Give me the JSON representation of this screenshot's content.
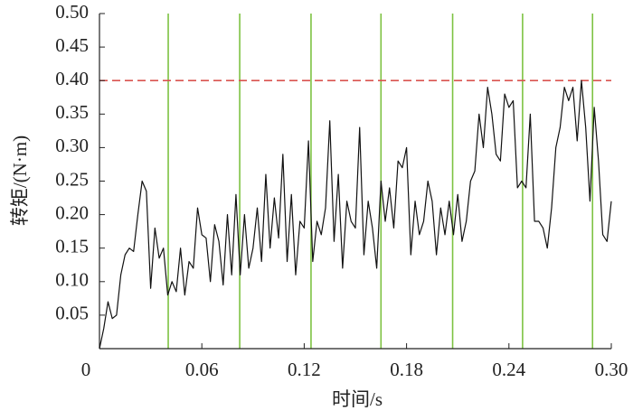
{
  "chart_data": {
    "type": "line",
    "xlabel": "时间/s",
    "ylabel": "转矩/(N·m)",
    "xlim": [
      0,
      0.3
    ],
    "ylim": [
      0,
      0.5
    ],
    "xticks": [
      0,
      0.06,
      0.12,
      0.18,
      0.24,
      {
        "value": 0.3,
        "label": "0.30"
      }
    ],
    "yticks": [
      0.05,
      {
        "value": 0.1,
        "label": "0.10"
      },
      0.15,
      {
        "value": 0.2,
        "label": "0.20"
      },
      0.25,
      {
        "value": 0.3,
        "label": "0.30"
      },
      0.35,
      {
        "value": 0.4,
        "label": "0.40"
      },
      0.45,
      {
        "value": 0.5,
        "label": "0.50"
      }
    ],
    "hline": 0.4,
    "hline_color": "#d9534f",
    "vlines": [
      0.0403,
      0.0822,
      0.124,
      0.165,
      0.207,
      0.248,
      0.289
    ],
    "vline_color": "#7dc242",
    "series": [
      {
        "color": "#111111",
        "x": [
          0,
          0.0025,
          0.005,
          0.0075,
          0.01,
          0.0125,
          0.015,
          0.0175,
          0.02,
          0.0225,
          0.025,
          0.0275,
          0.03,
          0.0325,
          0.035,
          0.0375,
          0.04,
          0.0425,
          0.045,
          0.0475,
          0.05,
          0.0525,
          0.055,
          0.0575,
          0.06,
          0.0625,
          0.065,
          0.0675,
          0.07,
          0.0725,
          0.075,
          0.0775,
          0.08,
          0.0825,
          0.085,
          0.0875,
          0.09,
          0.0925,
          0.095,
          0.0975,
          0.1,
          0.1025,
          0.105,
          0.1075,
          0.11,
          0.1125,
          0.115,
          0.1175,
          0.12,
          0.1225,
          0.125,
          0.1275,
          0.13,
          0.1325,
          0.135,
          0.1375,
          0.14,
          0.1425,
          0.145,
          0.1475,
          0.15,
          0.1525,
          0.155,
          0.1575,
          0.16,
          0.1625,
          0.165,
          0.1675,
          0.17,
          0.1725,
          0.175,
          0.1775,
          0.18,
          0.1825,
          0.185,
          0.1875,
          0.19,
          0.1925,
          0.195,
          0.1975,
          0.2,
          0.2025,
          0.205,
          0.2075,
          0.21,
          0.2125,
          0.215,
          0.2175,
          0.22,
          0.2225,
          0.225,
          0.2275,
          0.23,
          0.2325,
          0.235,
          0.2375,
          0.24,
          0.2425,
          0.245,
          0.2475,
          0.25,
          0.2525,
          0.255,
          0.2575,
          0.26,
          0.2625,
          0.265,
          0.2675,
          0.27,
          0.2725,
          0.275,
          0.2775,
          0.28,
          0.2825,
          0.285,
          0.2875,
          0.29,
          0.2925,
          0.295,
          0.2975,
          0.3
        ],
        "values": [
          0,
          0.03,
          0.07,
          0.045,
          0.05,
          0.11,
          0.14,
          0.15,
          0.145,
          0.2,
          0.25,
          0.235,
          0.09,
          0.18,
          0.135,
          0.15,
          0.08,
          0.1,
          0.085,
          0.15,
          0.08,
          0.13,
          0.12,
          0.21,
          0.17,
          0.165,
          0.1,
          0.185,
          0.16,
          0.095,
          0.2,
          0.11,
          0.23,
          0.11,
          0.2,
          0.12,
          0.15,
          0.21,
          0.13,
          0.26,
          0.15,
          0.225,
          0.165,
          0.29,
          0.13,
          0.23,
          0.11,
          0.19,
          0.18,
          0.31,
          0.13,
          0.19,
          0.17,
          0.21,
          0.34,
          0.16,
          0.26,
          0.12,
          0.22,
          0.19,
          0.18,
          0.33,
          0.14,
          0.22,
          0.18,
          0.12,
          0.25,
          0.19,
          0.24,
          0.18,
          0.28,
          0.27,
          0.3,
          0.14,
          0.22,
          0.17,
          0.19,
          0.25,
          0.22,
          0.14,
          0.21,
          0.17,
          0.22,
          0.17,
          0.23,
          0.16,
          0.19,
          0.25,
          0.265,
          0.35,
          0.3,
          0.39,
          0.35,
          0.29,
          0.28,
          0.38,
          0.36,
          0.37,
          0.24,
          0.25,
          0.24,
          0.35,
          0.19,
          0.19,
          0.18,
          0.15,
          0.21,
          0.3,
          0.33,
          0.39,
          0.37,
          0.39,
          0.31,
          0.4,
          0.33,
          0.22,
          0.36,
          0.28,
          0.17,
          0.16,
          0.22
        ]
      }
    ]
  }
}
